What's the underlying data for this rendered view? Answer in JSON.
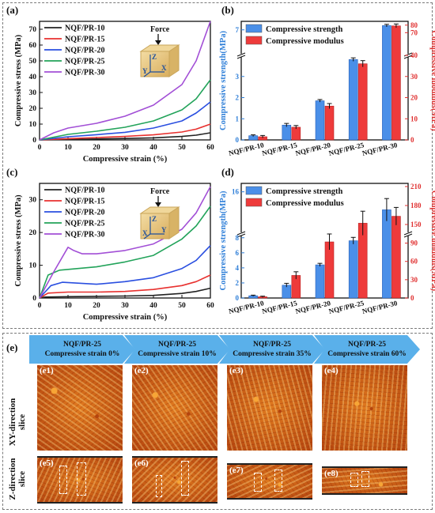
{
  "panel_labels": [
    "(a)",
    "(b)",
    "(c)",
    "(d)",
    "(e)"
  ],
  "chart_data": [
    {
      "id": "a",
      "type": "line",
      "xlabel": "Compressive strain (%)",
      "ylabel": "Compressive stress (MPa)",
      "xlim": [
        0,
        60
      ],
      "ylim": [
        0,
        75
      ],
      "xticks": [
        0,
        10,
        20,
        30,
        40,
        50,
        60
      ],
      "yticks": [
        0,
        10,
        20,
        30,
        40,
        50,
        60,
        70
      ],
      "legend": "top-left",
      "inset_label": "Force",
      "axis_labels_3d": [
        "Z",
        "Y",
        "X"
      ],
      "series": [
        {
          "name": "NQF/PR-10",
          "color": "#222222",
          "x": [
            0,
            10,
            20,
            30,
            40,
            50,
            55,
            60
          ],
          "y": [
            0,
            0.3,
            0.6,
            0.9,
            1.3,
            2.2,
            3.0,
            4.5
          ]
        },
        {
          "name": "NQF/PR-15",
          "color": "#e8312f",
          "x": [
            0,
            10,
            20,
            30,
            40,
            50,
            55,
            60
          ],
          "y": [
            0,
            0.8,
            1.5,
            2.2,
            3.2,
            5.0,
            6.8,
            10
          ]
        },
        {
          "name": "NQF/PR-20",
          "color": "#2a4fe0",
          "x": [
            0,
            10,
            20,
            30,
            40,
            50,
            55,
            60
          ],
          "y": [
            0,
            2.0,
            3.3,
            4.8,
            7.5,
            12,
            17,
            24
          ]
        },
        {
          "name": "NQF/PR-25",
          "color": "#22a35a",
          "x": [
            0,
            10,
            20,
            30,
            40,
            50,
            55,
            60
          ],
          "y": [
            0,
            3.5,
            5.5,
            8.0,
            12,
            19,
            26,
            38
          ]
        },
        {
          "name": "NQF/PR-30",
          "color": "#a24fd6",
          "x": [
            0,
            5,
            10,
            20,
            30,
            40,
            50,
            55,
            60
          ],
          "y": [
            0,
            4.5,
            7.5,
            10.5,
            15,
            22,
            35,
            50,
            75
          ]
        }
      ]
    },
    {
      "id": "b",
      "type": "bar",
      "categories": [
        "NQF/PR-10",
        "NQF/PR-15",
        "NQF/PR-20",
        "NQF/PR-25",
        "NQF/PR-30"
      ],
      "ylabel_left": "Compressive strength(MPa)",
      "ylabel_right": "Compressive modulus(MPa)",
      "left_ticks": [
        "0",
        "1",
        "2",
        "3",
        "7"
      ],
      "right_ticks": [
        "0",
        "10",
        "20",
        "30",
        "40",
        "70",
        "80"
      ],
      "axis_break": true,
      "legend": "top-left",
      "series": [
        {
          "name": "Compressive strength",
          "axis": "left",
          "color": "#4a8fe8",
          "values": [
            0.2,
            0.7,
            1.85,
            3.8,
            7.5
          ],
          "errors": [
            0.04,
            0.08,
            0.06,
            0.08,
            0.15
          ]
        },
        {
          "name": "Compressive modulus",
          "axis": "right",
          "color": "#ee3b3b",
          "values": [
            1.5,
            6.0,
            16,
            36,
            79
          ],
          "errors": [
            0.6,
            0.8,
            1.2,
            1.5,
            2.5
          ]
        }
      ]
    },
    {
      "id": "c",
      "type": "line",
      "xlabel": "Compressive strain (%)",
      "ylabel": "Compressive stress (MPa)",
      "xlim": [
        0,
        60
      ],
      "ylim": [
        0,
        35
      ],
      "xticks": [
        0,
        10,
        20,
        30,
        40,
        50,
        60
      ],
      "yticks": [
        0,
        10,
        20,
        30
      ],
      "legend": "top-left",
      "inset_label": "Force",
      "axis_labels_3d": [
        "Z",
        "X",
        "Y"
      ],
      "series": [
        {
          "name": "NQF/PR-10",
          "color": "#222222",
          "x": [
            0,
            2,
            10,
            20,
            30,
            40,
            50,
            55,
            60
          ],
          "y": [
            0,
            0.3,
            0.4,
            0.5,
            0.6,
            0.8,
            1.4,
            2.0,
            3.0
          ]
        },
        {
          "name": "NQF/PR-15",
          "color": "#e8312f",
          "x": [
            0,
            3,
            10,
            20,
            30,
            40,
            50,
            55,
            60
          ],
          "y": [
            0,
            1.5,
            1.8,
            1.8,
            2.0,
            2.6,
            3.8,
            5.0,
            7.0
          ]
        },
        {
          "name": "NQF/PR-20",
          "color": "#2a4fe0",
          "x": [
            0,
            4,
            8,
            20,
            30,
            40,
            50,
            55,
            60
          ],
          "y": [
            0,
            3.8,
            4.8,
            4.2,
            5.0,
            6.2,
            9.0,
            11.5,
            16
          ]
        },
        {
          "name": "NQF/PR-25",
          "color": "#22a35a",
          "x": [
            0,
            3,
            7,
            20,
            30,
            40,
            50,
            55,
            60
          ],
          "y": [
            0,
            7.0,
            8.5,
            9.5,
            11,
            13,
            18,
            22,
            28
          ]
        },
        {
          "name": "NQF/PR-30",
          "color": "#a24fd6",
          "x": [
            0,
            5,
            10,
            12,
            15,
            20,
            30,
            40,
            50,
            55,
            60
          ],
          "y": [
            0,
            8,
            15.5,
            14.5,
            13.5,
            13.5,
            14.5,
            16.5,
            21,
            26,
            34
          ]
        }
      ]
    },
    {
      "id": "d",
      "type": "bar",
      "categories": [
        "NQF/PR-10",
        "NQF/PR-15",
        "NQF/PR-20",
        "NQF/PR-25",
        "NQF/PR-30"
      ],
      "ylabel_left": "Compressive strength(MPa)",
      "ylabel_right": "Compressive modulus(MPa)",
      "left_ticks": [
        "0",
        "2",
        "4",
        "6",
        "8",
        "16"
      ],
      "right_ticks": [
        "0",
        "30",
        "60",
        "90",
        "150",
        "180",
        "210"
      ],
      "axis_break": true,
      "legend": "top-left",
      "series": [
        {
          "name": "Compressive strength",
          "axis": "left",
          "color": "#4a8fe8",
          "values": [
            0.3,
            1.7,
            4.4,
            7.6,
            12.8
          ],
          "errors": [
            0.08,
            0.25,
            0.2,
            0.45,
            2.0
          ]
        },
        {
          "name": "Compressive modulus",
          "axis": "right",
          "color": "#ee3b3b",
          "values": [
            2,
            37,
            92,
            152,
            163
          ],
          "errors": [
            1,
            6,
            13,
            19,
            14
          ]
        }
      ]
    }
  ],
  "panel_e": {
    "stages": [
      {
        "line1": "NQF/PR-25",
        "line2": "Compressive strain 0%"
      },
      {
        "line1": "NQF/PR-25",
        "line2": "Compressive strain 10%"
      },
      {
        "line1": "NQF/PR-25",
        "line2": "Compressive strain 35%"
      },
      {
        "line1": "NQF/PR-25",
        "line2": "Compressive strain 60%"
      }
    ],
    "row_labels": [
      {
        "line1": "XY-direction",
        "line2": "slice"
      },
      {
        "line1": "Z-direction",
        "line2": "slice"
      }
    ],
    "xy_labels": [
      "e1",
      "e2",
      "e3",
      "e4"
    ],
    "z_labels": [
      "e5",
      "e6",
      "e7",
      "e8"
    ],
    "colors": {
      "slice_bright": "#f7a536",
      "slice_mid": "#e07a1f",
      "slice_dark": "#b4440e",
      "banner": "#5ab0ea"
    }
  }
}
